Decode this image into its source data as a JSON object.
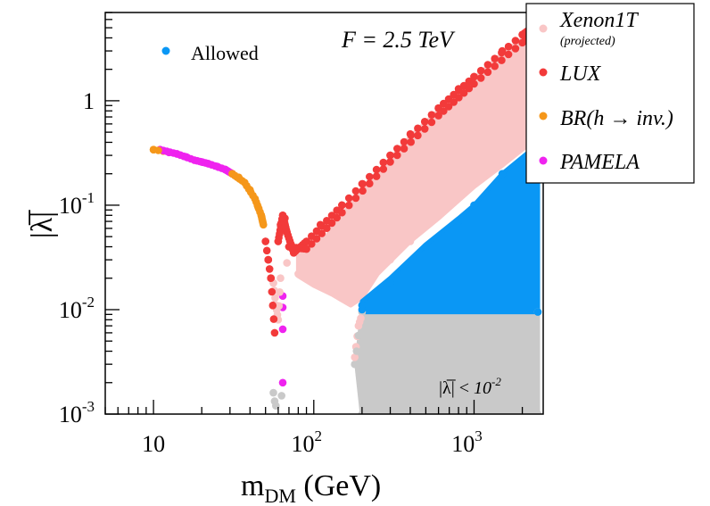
{
  "colors": {
    "xenon": "#f9c6c6",
    "lux": "#f23a3a",
    "br": "#f5971a",
    "pamela": "#ef23ef",
    "allowed": "#0a97f5",
    "excluded": "#c9c9c9"
  },
  "chart_data": {
    "type": "scatter",
    "xscale": "log",
    "yscale": "log",
    "xlim": [
      5,
      2700
    ],
    "ylim": [
      0.001,
      7
    ],
    "xlabel_main": "m",
    "xlabel_sub": "DM",
    "xlabel_unit": " (GeV)",
    "ylabel": "|λ̅|",
    "annotation": "F = 2.5 TeV",
    "x_ticks": [
      {
        "value": 10,
        "label": "10",
        "sup": ""
      },
      {
        "value": 100,
        "label": "10",
        "sup": "2"
      },
      {
        "value": 1000,
        "label": "10",
        "sup": "3"
      }
    ],
    "y_ticks": [
      {
        "value": 0.001,
        "label": "10",
        "sup": "-3"
      },
      {
        "value": 0.01,
        "label": "10",
        "sup": "-2"
      },
      {
        "value": 0.1,
        "label": "10",
        "sup": "-1"
      },
      {
        "value": 1,
        "label": "1",
        "sup": ""
      }
    ],
    "allowed_label": "Allowed",
    "lambda_cut_label_prefix": "|λ̅| < ",
    "lambda_cut_label_base": "10",
    "lambda_cut_label_exp": "-2",
    "legend": [
      {
        "key": "xenon",
        "label": "Xenon1T",
        "sublabel": "(projected)"
      },
      {
        "key": "lux",
        "label": "LUX",
        "sublabel": ""
      },
      {
        "key": "br",
        "label": "BR(h → inv.)",
        "sublabel": ""
      },
      {
        "key": "pamela",
        "label": "PAMELA",
        "sublabel": ""
      }
    ],
    "series": [
      {
        "name": "PAMELA",
        "key": "pamela",
        "points": [
          [
            11,
            0.34
          ],
          [
            12.5,
            0.32
          ],
          [
            14,
            0.31
          ],
          [
            16,
            0.29
          ],
          [
            18,
            0.27
          ],
          [
            20,
            0.26
          ],
          [
            22,
            0.25
          ],
          [
            25,
            0.235
          ],
          [
            28,
            0.22
          ],
          [
            31,
            0.2
          ],
          [
            64,
            0.0135
          ],
          [
            64,
            0.0105
          ],
          [
            64,
            0.0065
          ],
          [
            64,
            0.002
          ]
        ]
      },
      {
        "name": "BR(h → inv.)",
        "key": "br",
        "points": [
          [
            10,
            0.34
          ],
          [
            11.5,
            0.33
          ],
          [
            31,
            0.2
          ],
          [
            34,
            0.185
          ],
          [
            37,
            0.165
          ],
          [
            40,
            0.14
          ],
          [
            43,
            0.115
          ],
          [
            45,
            0.095
          ],
          [
            47,
            0.08
          ],
          [
            48.5,
            0.065
          ]
        ]
      },
      {
        "name": "LUX",
        "key": "lux",
        "points": [
          [
            50,
            0.045
          ],
          [
            52,
            0.03
          ],
          [
            54,
            0.02
          ],
          [
            56,
            0.011
          ],
          [
            57,
            0.006
          ],
          [
            60,
            0.045
          ],
          [
            62,
            0.065
          ],
          [
            64,
            0.08
          ],
          [
            66,
            0.075
          ],
          [
            68,
            0.055
          ],
          [
            70,
            0.04
          ],
          [
            75,
            0.035
          ],
          [
            90,
            0.045
          ],
          [
            110,
            0.065
          ],
          [
            150,
            0.1
          ],
          [
            200,
            0.16
          ],
          [
            300,
            0.3
          ],
          [
            400,
            0.48
          ],
          [
            600,
            0.85
          ],
          [
            800,
            1.3
          ],
          [
            1000,
            1.7
          ],
          [
            1500,
            3.0
          ],
          [
            2000,
            4.3
          ],
          [
            2500,
            5.5
          ]
        ]
      },
      {
        "name": "Xenon1T (projected)",
        "key": "xenon",
        "points": [
          [
            56,
            0.018
          ],
          [
            58,
            0.011
          ],
          [
            62,
            0.02
          ],
          [
            68,
            0.028
          ],
          [
            80,
            0.022
          ],
          [
            100,
            0.018
          ],
          [
            130,
            0.015
          ],
          [
            170,
            0.012
          ],
          [
            200,
            0.016
          ],
          [
            300,
            0.03
          ],
          [
            400,
            0.045
          ],
          [
            600,
            0.08
          ],
          [
            800,
            0.12
          ],
          [
            1000,
            0.16
          ],
          [
            1500,
            0.28
          ],
          [
            2000,
            0.38
          ],
          [
            2500,
            0.5
          ],
          [
            2500,
            4.0
          ]
        ]
      },
      {
        "name": "Allowed",
        "key": "allowed",
        "points": [
          [
            200,
            0.01
          ],
          [
            200,
            0.011
          ],
          [
            300,
            0.018
          ],
          [
            500,
            0.04
          ],
          [
            800,
            0.07
          ],
          [
            1000,
            0.1
          ],
          [
            1500,
            0.2
          ],
          [
            2500,
            0.36
          ],
          [
            2500,
            0.0095
          ]
        ]
      },
      {
        "name": "|λ̅| < 10^-2",
        "key": "excluded",
        "points": [
          [
            58,
            0.0012
          ],
          [
            63,
            0.0015
          ],
          [
            180,
            0.003
          ],
          [
            200,
            0.0095
          ],
          [
            200,
            0.001
          ],
          [
            2500,
            0.001
          ],
          [
            2500,
            0.0095
          ]
        ]
      }
    ]
  }
}
